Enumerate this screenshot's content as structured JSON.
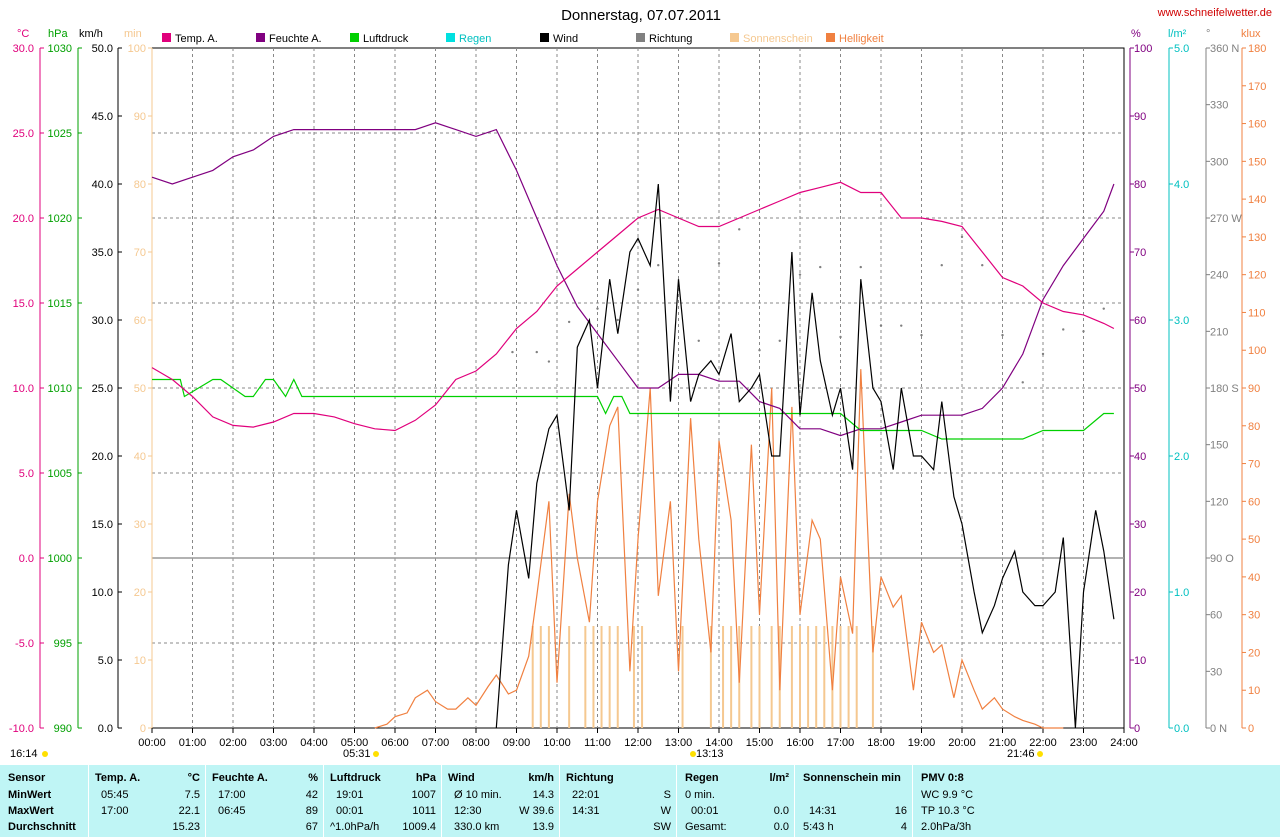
{
  "header": {
    "title": "Donnerstag, 07.07.2011",
    "site": "www.schneifelwetter.de",
    "axis_units_left": [
      "°C",
      "hPa",
      "km/h",
      "min"
    ],
    "axis_units_right": [
      "%",
      "l/m²",
      "°",
      "klux"
    ]
  },
  "legend": [
    {
      "label": "Temp. A.",
      "color": "#e0007c"
    },
    {
      "label": "Feuchte A.",
      "color": "#800080"
    },
    {
      "label": "Luftdruck",
      "color": "#00d000"
    },
    {
      "label": "Regen",
      "color": "#00e0e0"
    },
    {
      "label": "Wind",
      "color": "#000000"
    },
    {
      "label": "Richtung",
      "color": "#808080"
    },
    {
      "label": "Sonnenschein",
      "color": "#f5c890"
    },
    {
      "label": "Helligkeit",
      "color": "#f08040"
    }
  ],
  "axes": {
    "temp": [
      "30.0",
      "25.0",
      "20.0",
      "15.0",
      "10.0",
      "5.0",
      "0.0",
      "-5.0",
      "-10.0"
    ],
    "hpa": [
      "1030",
      "1025",
      "1020",
      "1015",
      "1010",
      "1005",
      "1000",
      "995",
      "990"
    ],
    "kmh": [
      "50.0",
      "45.0",
      "40.0",
      "35.0",
      "30.0",
      "25.0",
      "20.0",
      "15.0",
      "10.0",
      "5.0",
      "0.0"
    ],
    "minutes": [
      "100",
      "90",
      "80",
      "70",
      "60",
      "50",
      "40",
      "30",
      "20",
      "10",
      "0"
    ],
    "humidity": [
      "100",
      "90",
      "80",
      "70",
      "60",
      "50",
      "40",
      "30",
      "20",
      "10",
      "0"
    ],
    "rain": [
      "5.0",
      "4.0",
      "3.0",
      "2.0",
      "1.0",
      "0.0"
    ],
    "direction": [
      "360 N",
      "330",
      "300",
      "270 W",
      "240",
      "210",
      "180 S",
      "150",
      "120",
      "90 O",
      "60",
      "30",
      "0 N"
    ],
    "klux": [
      "180",
      "170",
      "160",
      "150",
      "140",
      "130",
      "120",
      "110",
      "100",
      "90",
      "80",
      "70",
      "60",
      "50",
      "40",
      "30",
      "20",
      "10",
      "0"
    ],
    "hours": [
      "00:00",
      "01:00",
      "02:00",
      "03:00",
      "04:00",
      "05:00",
      "06:00",
      "07:00",
      "08:00",
      "09:00",
      "10:00",
      "11:00",
      "12:00",
      "13:00",
      "14:00",
      "15:00",
      "16:00",
      "17:00",
      "18:00",
      "19:00",
      "20:00",
      "21:00",
      "22:00",
      "23:00",
      "24:00"
    ]
  },
  "time_markers": {
    "daylength": "16:14",
    "sunrise": "05:31",
    "noon": "13:13",
    "sunset": "21:46"
  },
  "chart_data": {
    "type": "line",
    "x_unit": "hours",
    "series": [
      {
        "name": "Temp. A.",
        "axis": "°C",
        "color": "#e0007c",
        "x": [
          0,
          0.5,
          1,
          1.5,
          2,
          2.5,
          3,
          3.5,
          4,
          4.5,
          5,
          5.5,
          6,
          6.5,
          7,
          7.5,
          8,
          8.5,
          9,
          9.5,
          10,
          10.5,
          11,
          11.5,
          12,
          12.5,
          13,
          13.5,
          14,
          14.5,
          15,
          15.5,
          16,
          16.5,
          17,
          17.5,
          18,
          18.5,
          19,
          19.5,
          20,
          20.5,
          21,
          21.5,
          22,
          22.5,
          23,
          23.5,
          23.75
        ],
        "y": [
          11.2,
          10.5,
          9.5,
          8.3,
          7.8,
          7.7,
          8.0,
          8.5,
          8.5,
          8.3,
          7.9,
          7.6,
          7.5,
          8.1,
          9.0,
          10.5,
          11.0,
          12.0,
          13.5,
          14.5,
          16.0,
          17.0,
          18.0,
          19.0,
          20.0,
          20.5,
          20.0,
          19.5,
          19.5,
          20.0,
          20.5,
          21.0,
          21.5,
          21.8,
          22.1,
          21.5,
          21.5,
          20.0,
          20.0,
          19.8,
          19.5,
          18.0,
          16.5,
          16.0,
          15.0,
          14.5,
          14.3,
          13.8,
          13.5
        ]
      },
      {
        "name": "Feuchte A.",
        "axis": "%",
        "color": "#800080",
        "x": [
          0,
          0.5,
          1,
          1.5,
          2,
          2.5,
          3,
          3.5,
          4,
          4.5,
          5,
          5.5,
          6,
          6.5,
          7,
          7.5,
          8,
          8.5,
          9,
          9.5,
          10,
          10.5,
          11,
          11.5,
          12,
          12.5,
          13,
          13.5,
          14,
          14.5,
          15,
          15.5,
          16,
          16.5,
          17,
          17.5,
          18,
          18.5,
          19,
          19.5,
          20,
          20.5,
          21,
          21.5,
          22,
          22.5,
          23,
          23.5,
          23.75
        ],
        "y": [
          81,
          80,
          81,
          82,
          84,
          85,
          87,
          88,
          88,
          88,
          88,
          88,
          88,
          88,
          89,
          88,
          87,
          88,
          82,
          75,
          68,
          62,
          58,
          54,
          50,
          50,
          52,
          52,
          51,
          51,
          48,
          47,
          44,
          44,
          43,
          44,
          44,
          45,
          46,
          46,
          46,
          47,
          50,
          55,
          63,
          68,
          72,
          76,
          80
        ]
      },
      {
        "name": "Luftdruck",
        "axis": "hPa",
        "color": "#00d000",
        "x": [
          0,
          0.7,
          0.8,
          1.5,
          1.7,
          2.3,
          2.5,
          2.8,
          3.0,
          3.3,
          3.5,
          3.7,
          4,
          5,
          6,
          7,
          8,
          9,
          10,
          11,
          11.2,
          11.4,
          11.6,
          11.8,
          12,
          13,
          14,
          15,
          16,
          17,
          17.5,
          18,
          18.5,
          19,
          19.5,
          20,
          20.5,
          21,
          21.5,
          22,
          22.5,
          23,
          23.5,
          23.75
        ],
        "y": [
          1010.5,
          1010.5,
          1009.5,
          1010.5,
          1010.5,
          1009.5,
          1009.5,
          1010.5,
          1010.5,
          1009.5,
          1010.5,
          1009.5,
          1009.5,
          1009.5,
          1009.5,
          1009.5,
          1009.5,
          1009.5,
          1009.5,
          1009.5,
          1008.5,
          1009.5,
          1009.5,
          1008.5,
          1008.5,
          1008.5,
          1008.5,
          1008.5,
          1008.5,
          1008.5,
          1007.5,
          1007.5,
          1007.5,
          1007.5,
          1007.0,
          1007.0,
          1007.0,
          1007.0,
          1007.0,
          1007.5,
          1007.5,
          1007.5,
          1008.5,
          1008.5
        ]
      },
      {
        "name": "Wind",
        "axis": "km/h",
        "color": "#000000",
        "x": [
          8.5,
          8.8,
          9.0,
          9.3,
          9.5,
          9.8,
          10.0,
          10.3,
          10.5,
          10.8,
          11.0,
          11.3,
          11.5,
          11.8,
          12.0,
          12.3,
          12.5,
          12.8,
          13.0,
          13.3,
          13.5,
          13.8,
          14.0,
          14.3,
          14.5,
          14.8,
          15.0,
          15.3,
          15.5,
          15.8,
          16.0,
          16.3,
          16.5,
          16.8,
          17.0,
          17.3,
          17.5,
          17.8,
          18.0,
          18.3,
          18.5,
          18.8,
          19.0,
          19.3,
          19.5,
          19.8,
          20.0,
          20.3,
          20.5,
          20.8,
          21.0,
          21.3,
          21.5,
          21.8,
          22.0,
          22.3,
          22.5,
          22.8,
          23.0,
          23.3,
          23.5,
          23.75
        ],
        "y": [
          0,
          12,
          16,
          11,
          18,
          22,
          23,
          16,
          28,
          30,
          25,
          33,
          29,
          35,
          36,
          34,
          40,
          24,
          33,
          24,
          26,
          27,
          26,
          29,
          24,
          25,
          26,
          20,
          20,
          35,
          23,
          32,
          27,
          23,
          25,
          19,
          33,
          25,
          24,
          19,
          25,
          20,
          20,
          19,
          24,
          17,
          15,
          10,
          7,
          9,
          11,
          13,
          10,
          9,
          9,
          10,
          14,
          0,
          10,
          16,
          13,
          8
        ]
      },
      {
        "name": "Helligkeit",
        "axis": "klux",
        "color": "#f08040",
        "x": [
          5.5,
          5.8,
          6.0,
          6.3,
          6.5,
          6.8,
          7.0,
          7.3,
          7.5,
          7.8,
          8.0,
          8.3,
          8.5,
          8.8,
          9.0,
          9.3,
          9.5,
          9.8,
          10.0,
          10.3,
          10.5,
          10.8,
          11.0,
          11.3,
          11.5,
          11.8,
          12.0,
          12.3,
          12.5,
          12.8,
          13.0,
          13.3,
          13.5,
          13.8,
          14.0,
          14.3,
          14.5,
          14.8,
          15.0,
          15.3,
          15.5,
          15.8,
          16.0,
          16.3,
          16.5,
          16.8,
          17.0,
          17.3,
          17.5,
          17.8,
          18.0,
          18.3,
          18.5,
          18.8,
          19.0,
          19.3,
          19.5,
          19.8,
          20.0,
          20.3,
          20.5,
          20.8,
          21.0,
          21.3,
          21.5,
          21.8,
          22.0,
          22.3,
          22.5
        ],
        "y": [
          0,
          1,
          3,
          4,
          8,
          10,
          7,
          5,
          5,
          8,
          6,
          11,
          14,
          9,
          10,
          19,
          35,
          60,
          12,
          62,
          45,
          28,
          60,
          80,
          85,
          15,
          50,
          90,
          35,
          60,
          15,
          82,
          50,
          20,
          76,
          55,
          12,
          75,
          30,
          90,
          10,
          85,
          30,
          55,
          50,
          10,
          40,
          25,
          95,
          20,
          40,
          32,
          35,
          10,
          28,
          20,
          22,
          8,
          18,
          10,
          5,
          8,
          5,
          3,
          2,
          1,
          0,
          0,
          0
        ]
      },
      {
        "name": "Sonnenschein",
        "axis": "min",
        "color": "#f5c890",
        "type": "bar",
        "x": [
          9.4,
          9.6,
          9.8,
          10.3,
          10.7,
          10.9,
          11.1,
          11.3,
          11.5,
          11.9,
          12.1,
          13.1,
          13.8,
          14.1,
          14.3,
          14.5,
          14.8,
          15.0,
          15.3,
          15.5,
          15.8,
          16.0,
          16.2,
          16.4,
          16.6,
          16.8,
          17.0,
          17.2,
          17.4,
          17.8
        ],
        "y": [
          15,
          15,
          15,
          15,
          15,
          15,
          15,
          15,
          15,
          15,
          15,
          15,
          15,
          15,
          15,
          15,
          15,
          15,
          15,
          15,
          15,
          15,
          15,
          15,
          15,
          15,
          15,
          15,
          15,
          15
        ]
      },
      {
        "name": "Richtung",
        "axis": "°",
        "color": "#808080",
        "type": "scatter",
        "x": [
          8.9,
          9.5,
          9.8,
          10.3,
          11.0,
          11.5,
          12.0,
          12.5,
          13.0,
          13.5,
          14.0,
          14.5,
          15.0,
          15.5,
          16.0,
          16.5,
          17.0,
          17.5,
          18.0,
          18.5,
          19.0,
          19.5,
          20.0,
          20.5,
          21.0,
          21.5,
          22.0,
          22.5,
          23.0,
          23.5
        ],
        "y": [
          199,
          199,
          194,
          215,
          222,
          216,
          232,
          245,
          232,
          205,
          246,
          264,
          200,
          205,
          240,
          244,
          207,
          244,
          213,
          213,
          208,
          245,
          260,
          245,
          208,
          183,
          198,
          211,
          210,
          222
        ]
      }
    ],
    "xlim": [
      0,
      24
    ],
    "ylim_temp": [
      -10,
      30
    ],
    "ylim_hpa": [
      990,
      1030
    ],
    "ylim_kmh": [
      0,
      50
    ],
    "ylim_humidity": [
      0,
      100
    ],
    "ylim_klux": [
      0,
      180
    ],
    "ylim_direction": [
      0,
      360
    ],
    "grid": true
  },
  "stats": {
    "sensor": {
      "title": "Sensor",
      "rows": [
        "MinWert",
        "MaxWert",
        "Durchschnitt"
      ]
    },
    "temp": {
      "title": "Temp. A.",
      "unit": "°C",
      "min_time": "05:45",
      "min": "7.5",
      "max_time": "17:00",
      "max": "22.1",
      "avg": "15.23"
    },
    "humidity": {
      "title": "Feuchte A.",
      "unit": "%",
      "min_time": "17:00",
      "min": "42",
      "max_time": "06:45",
      "max": "89",
      "avg": "67"
    },
    "pressure": {
      "title": "Luftdruck",
      "unit": "hPa",
      "min_time": "19:01",
      "min": "1007",
      "max_time": "00:01",
      "max": "1011",
      "trend": "^1.0hPa/h",
      "avg": "1009.4"
    },
    "wind": {
      "title": "Wind",
      "unit": "km/h",
      "min_label": "Ø 10 min.",
      "min": "14.3",
      "max_time": "12:30",
      "max": "W 39.6",
      "distance": "330.0 km",
      "avg": "13.9"
    },
    "direction": {
      "title": "Richtung",
      "min_time": "22:01",
      "min": "S",
      "max_time": "14:31",
      "max": "W",
      "avg": "SW"
    },
    "rain": {
      "title": "Regen",
      "unit": "l/m²",
      "row1": "0 min.",
      "max_time": "00:01",
      "max": "0.0",
      "total_label": "Gesamt:",
      "total": "0.0"
    },
    "sunshine": {
      "title": "Sonnenschein min",
      "max_time": "14:31",
      "max": "16",
      "total": "5:43 h",
      "avg": "4"
    },
    "pmv": {
      "title": "PMV 0:8",
      "wc": "WC 9.9 °C",
      "tp": "TP 10.3 °C",
      "trend": "2.0hPa/3h"
    }
  }
}
